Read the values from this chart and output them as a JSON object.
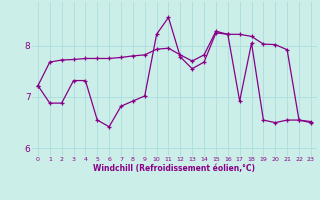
{
  "xlabel": "Windchill (Refroidissement éolien,°C)",
  "bg_color": "#cceee8",
  "line_color": "#880088",
  "grid_color": "#aadddd",
  "xlim": [
    -0.5,
    23.5
  ],
  "ylim": [
    5.85,
    8.85
  ],
  "yticks": [
    6,
    7,
    8
  ],
  "xticks": [
    0,
    1,
    2,
    3,
    4,
    5,
    6,
    7,
    8,
    9,
    10,
    11,
    12,
    13,
    14,
    15,
    16,
    17,
    18,
    19,
    20,
    21,
    22,
    23
  ],
  "series1_x": [
    0,
    1,
    2,
    3,
    4,
    5,
    6,
    7,
    8,
    9,
    10,
    11,
    12,
    13,
    14,
    15,
    16,
    17,
    18,
    19,
    20,
    21,
    22,
    23
  ],
  "series1_y": [
    7.22,
    7.68,
    7.72,
    7.73,
    7.75,
    7.75,
    7.75,
    7.77,
    7.8,
    7.82,
    7.93,
    7.95,
    7.82,
    7.7,
    7.82,
    8.28,
    8.22,
    8.22,
    8.18,
    8.03,
    8.02,
    7.92,
    6.55,
    6.52
  ],
  "series2_x": [
    0,
    1,
    2,
    3,
    4,
    5,
    6,
    7,
    8,
    9,
    10,
    11,
    12,
    13,
    14,
    15,
    16,
    17,
    18,
    19,
    20,
    21,
    22,
    23
  ],
  "series2_y": [
    7.22,
    6.88,
    6.88,
    7.32,
    7.32,
    6.55,
    6.42,
    6.82,
    6.92,
    7.02,
    8.22,
    8.55,
    7.78,
    7.55,
    7.68,
    8.25,
    8.22,
    6.92,
    8.05,
    6.55,
    6.5,
    6.55,
    6.55,
    6.5
  ]
}
